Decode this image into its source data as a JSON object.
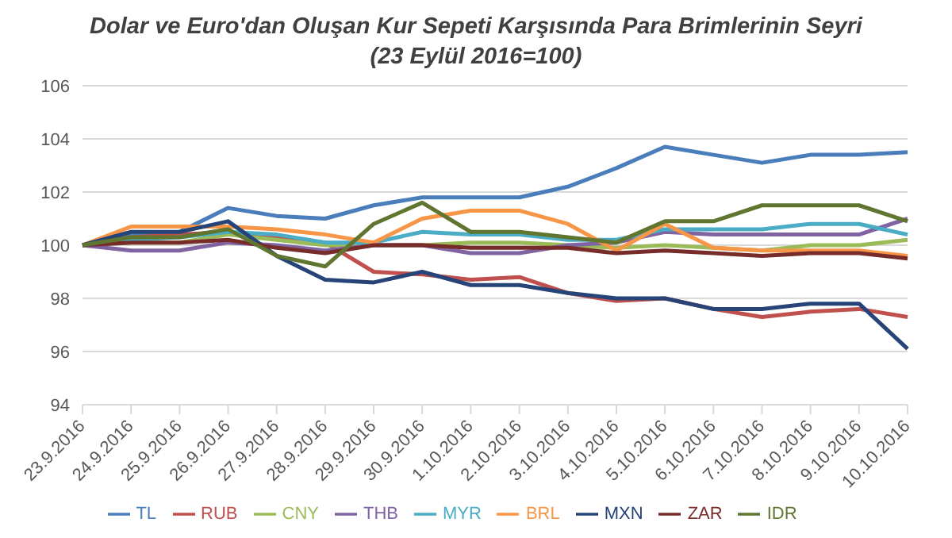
{
  "chart_data": {
    "type": "line",
    "title": "Dolar ve Euro'dan Oluşan Kur Sepeti Karşısında Para Brimlerinin Seyri",
    "subtitle": "(23 Eylül 2016=100)",
    "categories": [
      "23.9.2016",
      "24.9.2016",
      "25.9.2016",
      "26.9.2016",
      "27.9.2016",
      "28.9.2016",
      "29.9.2016",
      "30.9.2016",
      "1.10.2016",
      "2.10.2016",
      "3.10.2016",
      "4.10.2016",
      "5.10.2016",
      "6.10.2016",
      "7.10.2016",
      "8.10.2016",
      "9.10.2016",
      "10.10.2016"
    ],
    "series": [
      {
        "name": "TL",
        "color": "#4a7ebb",
        "values": [
          100,
          100.4,
          100.5,
          101.4,
          101.1,
          101.0,
          101.5,
          101.8,
          101.8,
          101.8,
          102.2,
          102.9,
          103.7,
          103.4,
          103.1,
          103.4,
          103.4,
          103.5
        ]
      },
      {
        "name": "RUB",
        "color": "#c0504d",
        "values": [
          100,
          100.3,
          100.4,
          100.5,
          100.3,
          100.1,
          99.0,
          98.9,
          98.7,
          98.8,
          98.2,
          97.9,
          98.0,
          97.6,
          97.3,
          97.5,
          97.6,
          97.3
        ]
      },
      {
        "name": "CNY",
        "color": "#9bbb59",
        "values": [
          100,
          100.1,
          100.1,
          100.4,
          100.2,
          100.0,
          100.0,
          100.0,
          100.1,
          100.1,
          100.0,
          99.9,
          100.0,
          99.9,
          99.8,
          100.0,
          100.0,
          100.2
        ]
      },
      {
        "name": "THB",
        "color": "#8064a2",
        "values": [
          100,
          99.8,
          99.8,
          100.1,
          100.0,
          99.8,
          100.0,
          100.0,
          99.7,
          99.7,
          100.0,
          100.1,
          100.5,
          100.4,
          100.4,
          100.4,
          100.4,
          101.0
        ]
      },
      {
        "name": "MYR",
        "color": "#4bacc6",
        "values": [
          100,
          100.2,
          100.3,
          100.5,
          100.4,
          100.1,
          100.1,
          100.5,
          100.4,
          100.4,
          100.2,
          100.2,
          100.6,
          100.6,
          100.6,
          100.8,
          100.8,
          100.4
        ]
      },
      {
        "name": "BRL",
        "color": "#f79646",
        "values": [
          100,
          100.7,
          100.7,
          100.7,
          100.6,
          100.4,
          100.1,
          101.0,
          101.3,
          101.3,
          100.8,
          99.8,
          100.8,
          99.9,
          99.8,
          99.8,
          99.8,
          99.6
        ]
      },
      {
        "name": "MXN",
        "color": "#264478",
        "values": [
          100,
          100.5,
          100.5,
          100.9,
          99.6,
          98.7,
          98.6,
          99.0,
          98.5,
          98.5,
          98.2,
          98.0,
          98.0,
          97.6,
          97.6,
          97.8,
          97.8,
          96.1
        ]
      },
      {
        "name": "ZAR",
        "color": "#772c2a",
        "values": [
          100,
          100.1,
          100.1,
          100.2,
          99.9,
          99.7,
          100.0,
          100.0,
          99.9,
          99.9,
          99.9,
          99.7,
          99.8,
          99.7,
          99.6,
          99.7,
          99.7,
          99.5
        ]
      },
      {
        "name": "IDR",
        "color": "#5f7530",
        "values": [
          100,
          100.3,
          100.3,
          100.6,
          99.6,
          99.2,
          100.8,
          101.6,
          100.5,
          100.5,
          100.3,
          100.1,
          100.9,
          100.9,
          101.5,
          101.5,
          101.5,
          100.9
        ]
      }
    ],
    "ylim": [
      94,
      106
    ],
    "yticks": [
      94,
      96,
      98,
      100,
      102,
      104,
      106
    ],
    "grid": "y",
    "legend": "bottom",
    "marker": "none",
    "line_style": "solid"
  }
}
